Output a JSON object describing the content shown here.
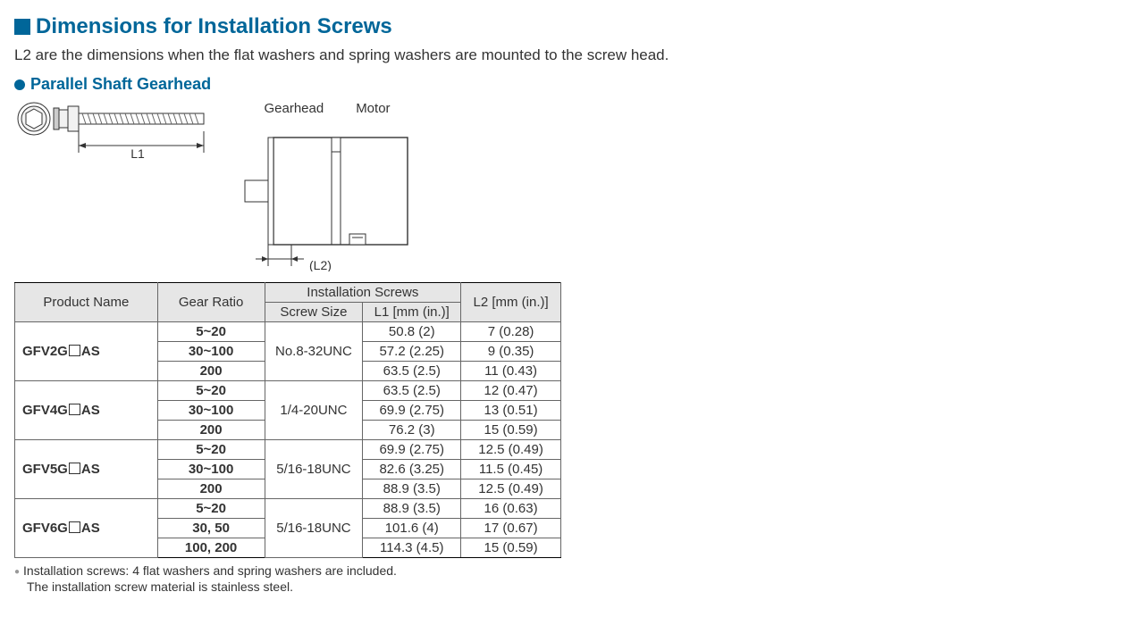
{
  "section": {
    "title": "Dimensions for Installation Screws",
    "intro": "L2 are the dimensions when the flat washers and spring washers are mounted to the screw head.",
    "subsection": "Parallel Shaft Gearhead"
  },
  "diagram": {
    "gearhead_label": "Gearhead",
    "motor_label": "Motor",
    "l1_label": "L1",
    "l2_label": "(L2)",
    "colors": {
      "stroke": "#333333",
      "fill_light": "#f2f2f2",
      "fill_dark": "#cccccc",
      "background": "#ffffff"
    }
  },
  "table": {
    "headers": {
      "product_name": "Product Name",
      "gear_ratio": "Gear Ratio",
      "install_group": "Installation Screws",
      "screw_size": "Screw Size",
      "l1": "L1 [mm (in.)]",
      "l2": "L2 [mm (in.)]"
    },
    "col_widths": {
      "product": 160,
      "ratio": 120,
      "screw": 110,
      "l1": 110,
      "l2": 112
    },
    "groups": [
      {
        "product_prefix": "GFV2G",
        "product_suffix": "AS",
        "screw_size": "No.8-32UNC",
        "rows": [
          {
            "ratio": "5~20",
            "l1": "50.8 (2)",
            "l2": "7 (0.28)"
          },
          {
            "ratio": "30~100",
            "l1": "57.2 (2.25)",
            "l2": "9 (0.35)"
          },
          {
            "ratio": "200",
            "l1": "63.5 (2.5)",
            "l2": "11 (0.43)"
          }
        ]
      },
      {
        "product_prefix": "GFV4G",
        "product_suffix": "AS",
        "screw_size": "1/4-20UNC",
        "rows": [
          {
            "ratio": "5~20",
            "l1": "63.5 (2.5)",
            "l2": "12 (0.47)"
          },
          {
            "ratio": "30~100",
            "l1": "69.9 (2.75)",
            "l2": "13 (0.51)"
          },
          {
            "ratio": "200",
            "l1": "76.2 (3)",
            "l2": "15 (0.59)"
          }
        ]
      },
      {
        "product_prefix": "GFV5G",
        "product_suffix": "AS",
        "screw_size": "5/16-18UNC",
        "rows": [
          {
            "ratio": "5~20",
            "l1": "69.9 (2.75)",
            "l2": "12.5 (0.49)"
          },
          {
            "ratio": "30~100",
            "l1": "82.6 (3.25)",
            "l2": "11.5 (0.45)"
          },
          {
            "ratio": "200",
            "l1": "88.9 (3.5)",
            "l2": "12.5 (0.49)"
          }
        ]
      },
      {
        "product_prefix": "GFV6G",
        "product_suffix": "AS",
        "screw_size": "5/16-18UNC",
        "rows": [
          {
            "ratio": "5~20",
            "l1": "88.9 (3.5)",
            "l2": "16 (0.63)"
          },
          {
            "ratio": "30, 50",
            "l1": "101.6 (4)",
            "l2": "17 (0.67)"
          },
          {
            "ratio": "100, 200",
            "l1": "114.3 (4.5)",
            "l2": "15 (0.59)"
          }
        ]
      }
    ]
  },
  "notes": {
    "line1": "Installation screws: 4 flat washers and spring washers are included.",
    "line2": "The installation screw material is stainless steel."
  },
  "colors": {
    "brand": "#006699",
    "text": "#333333",
    "header_bg": "#e6e6e6",
    "border": "#666666"
  }
}
